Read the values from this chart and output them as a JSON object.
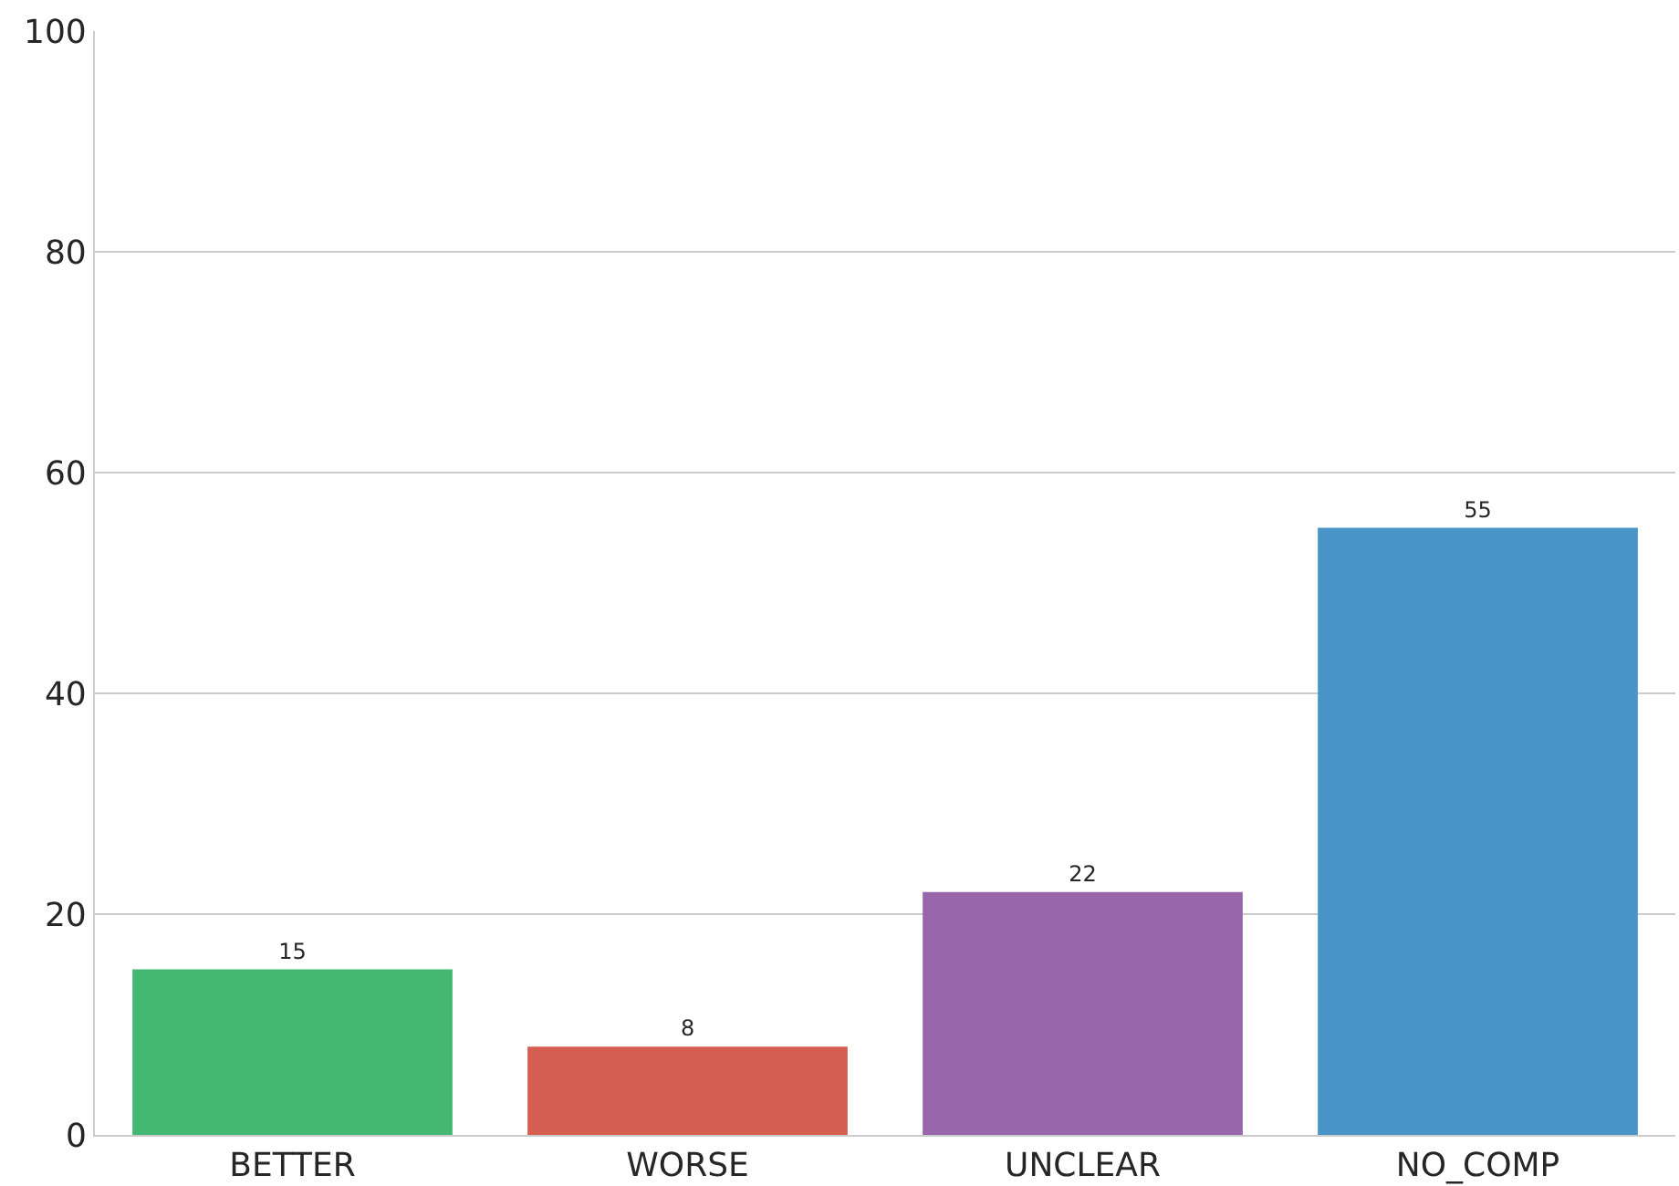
{
  "chart_data": {
    "type": "bar",
    "categories": [
      "BETTER",
      "WORSE",
      "UNCLEAR",
      "NO_COMP"
    ],
    "values": [
      15,
      8,
      22,
      55
    ],
    "colors": [
      "#44b873",
      "#d45f50",
      "#9867ab",
      "#4a95c8"
    ],
    "ylim": [
      0,
      100
    ],
    "yticks": [
      0,
      20,
      40,
      60,
      80,
      100
    ],
    "grid": "y",
    "data_labels": true
  }
}
